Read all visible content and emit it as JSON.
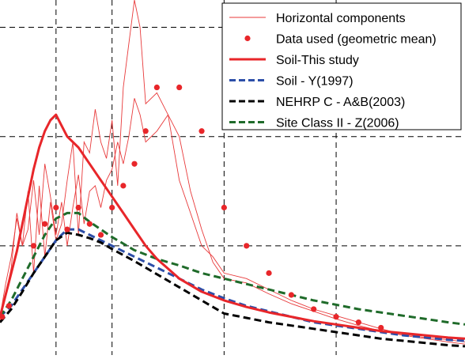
{
  "chart_data": {
    "type": "line",
    "title": "",
    "xlabel": "",
    "ylabel": "",
    "xlim": [
      0.0,
      4.15
    ],
    "ylim": [
      0.0,
      3.25
    ],
    "grid": true,
    "legend_position": "top-right",
    "x_gridlines": [
      0.5,
      1.0,
      2.0,
      3.0
    ],
    "y_gridlines": [
      1.0,
      2.0,
      3.0
    ],
    "colors": {
      "horizontal": "#e8393a",
      "data": "#e8262a",
      "soil_this_study": "#e8262a",
      "soil_y1997": "#2c4ea8",
      "nehrp_ab2003": "#000000",
      "site_class_ii_z2006": "#1f6b2a"
    },
    "horizontal_components": [
      {
        "x": [
          0.0,
          0.05,
          0.1,
          0.15,
          0.2,
          0.25,
          0.3,
          0.35,
          0.4,
          0.45,
          0.5,
          0.55,
          0.6,
          0.65,
          0.7,
          0.75,
          0.8,
          0.85,
          0.9,
          0.95,
          1.0,
          1.05,
          1.1,
          1.15,
          1.2,
          1.25,
          1.3,
          1.4,
          1.5,
          1.6,
          1.7,
          1.8,
          1.9,
          2.0,
          2.2,
          2.4,
          2.6,
          2.8,
          3.0,
          3.2,
          3.4,
          3.6,
          3.8,
          4.0,
          4.15
        ],
        "y": [
          0.35,
          0.65,
          0.9,
          1.25,
          1.0,
          1.5,
          0.75,
          1.55,
          0.9,
          1.4,
          1.05,
          1.2,
          1.6,
          1.95,
          1.1,
          1.95,
          1.85,
          2.25,
          1.95,
          1.8,
          2.15,
          1.55,
          2.45,
          2.85,
          3.25,
          3.0,
          2.3,
          2.4,
          2.2,
          1.6,
          1.3,
          1.0,
          0.9,
          0.75,
          0.7,
          0.6,
          0.5,
          0.42,
          0.36,
          0.3,
          0.24,
          0.19,
          0.16,
          0.14,
          0.12
        ]
      },
      {
        "x": [
          0.0,
          0.05,
          0.1,
          0.15,
          0.2,
          0.25,
          0.3,
          0.35,
          0.4,
          0.45,
          0.5,
          0.55,
          0.6,
          0.65,
          0.7,
          0.75,
          0.8,
          0.85,
          0.9,
          0.95,
          1.0,
          1.05,
          1.1,
          1.15,
          1.2,
          1.25,
          1.3,
          1.4,
          1.5,
          1.6,
          1.7,
          1.8,
          1.9,
          2.0,
          2.2,
          2.4,
          2.6,
          2.8,
          3.0,
          3.2,
          3.4,
          3.6,
          3.8,
          4.0,
          4.15
        ],
        "y": [
          0.3,
          0.55,
          0.8,
          1.3,
          1.0,
          1.15,
          1.6,
          1.1,
          1.75,
          1.45,
          1.1,
          1.4,
          1.0,
          1.35,
          1.65,
          1.2,
          1.5,
          1.55,
          1.35,
          1.6,
          1.7,
          1.95,
          1.75,
          2.0,
          2.35,
          2.2,
          1.95,
          2.05,
          2.2,
          2.0,
          1.5,
          1.15,
          0.85,
          0.7,
          0.66,
          0.56,
          0.47,
          0.4,
          0.33,
          0.27,
          0.22,
          0.18,
          0.15,
          0.12,
          0.1
        ]
      }
    ],
    "data_points": {
      "x": [
        0.02,
        0.08,
        0.3,
        0.4,
        0.5,
        0.6,
        0.7,
        0.8,
        0.9,
        1.0,
        1.1,
        1.2,
        1.3,
        1.4,
        1.6,
        1.8,
        2.0,
        2.2,
        2.4,
        2.6,
        2.8,
        3.0,
        3.2,
        3.4
      ],
      "y": [
        0.35,
        0.45,
        1.0,
        1.2,
        1.35,
        1.15,
        1.35,
        1.2,
        1.1,
        1.35,
        1.55,
        1.75,
        2.05,
        2.45,
        2.45,
        2.05,
        1.35,
        1.0,
        0.75,
        0.55,
        0.42,
        0.35,
        0.3,
        0.25
      ]
    },
    "series": [
      {
        "name": "Soil-This study",
        "x": [
          0.0,
          0.05,
          0.1,
          0.15,
          0.2,
          0.25,
          0.3,
          0.35,
          0.4,
          0.45,
          0.5,
          0.55,
          0.6,
          0.7,
          0.8,
          0.9,
          1.0,
          1.1,
          1.2,
          1.3,
          1.4,
          1.6,
          1.8,
          2.0,
          2.2,
          2.4,
          2.6,
          2.8,
          3.0,
          3.2,
          3.4,
          3.6,
          3.8,
          4.0,
          4.15
        ],
        "y": [
          0.35,
          0.55,
          0.75,
          0.95,
          1.2,
          1.45,
          1.7,
          1.9,
          2.05,
          2.15,
          2.2,
          2.1,
          2.0,
          1.9,
          1.75,
          1.6,
          1.45,
          1.3,
          1.15,
          1.0,
          0.88,
          0.7,
          0.58,
          0.5,
          0.44,
          0.39,
          0.35,
          0.31,
          0.28,
          0.25,
          0.22,
          0.2,
          0.18,
          0.16,
          0.15
        ]
      },
      {
        "name": "Soil - Y(1997)",
        "x": [
          0.0,
          0.1,
          0.2,
          0.3,
          0.4,
          0.5,
          0.6,
          0.7,
          0.8,
          0.9,
          1.0,
          1.2,
          1.4,
          1.6,
          1.8,
          2.0,
          2.2,
          2.4,
          2.6,
          2.8,
          3.0,
          3.2,
          3.4,
          3.6,
          3.8,
          4.0,
          4.15
        ],
        "y": [
          0.35,
          0.45,
          0.6,
          0.75,
          0.9,
          1.05,
          1.15,
          1.15,
          1.1,
          1.05,
          1.0,
          0.9,
          0.8,
          0.7,
          0.6,
          0.52,
          0.45,
          0.4,
          0.35,
          0.3,
          0.27,
          0.24,
          0.21,
          0.18,
          0.16,
          0.14,
          0.13
        ]
      },
      {
        "name": "NEHRP C - A&B(2003)",
        "x": [
          0.0,
          0.1,
          0.2,
          0.3,
          0.4,
          0.5,
          0.6,
          0.7,
          0.8,
          0.9,
          1.0,
          1.2,
          1.4,
          1.6,
          1.8,
          2.0,
          2.2,
          2.4,
          2.6,
          2.8,
          3.0,
          3.2,
          3.4,
          3.6,
          3.8,
          4.0,
          4.15
        ],
        "y": [
          0.3,
          0.42,
          0.58,
          0.75,
          0.9,
          1.05,
          1.12,
          1.1,
          1.07,
          1.03,
          0.97,
          0.86,
          0.74,
          0.62,
          0.5,
          0.38,
          0.34,
          0.3,
          0.27,
          0.24,
          0.21,
          0.18,
          0.15,
          0.13,
          0.11,
          0.09,
          0.08
        ]
      },
      {
        "name": "Site Class II - Z(2006)",
        "x": [
          0.0,
          0.1,
          0.2,
          0.3,
          0.4,
          0.5,
          0.6,
          0.7,
          0.8,
          0.9,
          1.0,
          1.2,
          1.4,
          1.6,
          1.8,
          2.0,
          2.2,
          2.4,
          2.6,
          2.8,
          3.0,
          3.2,
          3.4,
          3.6,
          3.8,
          4.0,
          4.15
        ],
        "y": [
          0.35,
          0.5,
          0.7,
          0.9,
          1.1,
          1.25,
          1.3,
          1.3,
          1.22,
          1.15,
          1.08,
          0.96,
          0.88,
          0.82,
          0.75,
          0.7,
          0.65,
          0.6,
          0.55,
          0.5,
          0.46,
          0.42,
          0.39,
          0.36,
          0.33,
          0.3,
          0.28
        ]
      }
    ],
    "legend": [
      {
        "label": "Horizontal components",
        "kind": "thin-line",
        "color_key": "horizontal"
      },
      {
        "label": "Data used (geometric mean)",
        "kind": "marker",
        "color_key": "data"
      },
      {
        "label": "Soil-This study",
        "kind": "thick-line",
        "color_key": "soil_this_study"
      },
      {
        "label": "Soil - Y(1997)",
        "kind": "dashed",
        "color_key": "soil_y1997"
      },
      {
        "label": "NEHRP C - A&B(2003)",
        "kind": "dashed",
        "color_key": "nehrp_ab2003"
      },
      {
        "label": "Site Class II - Z(2006)",
        "kind": "dashed",
        "color_key": "site_class_ii_z2006"
      }
    ]
  }
}
